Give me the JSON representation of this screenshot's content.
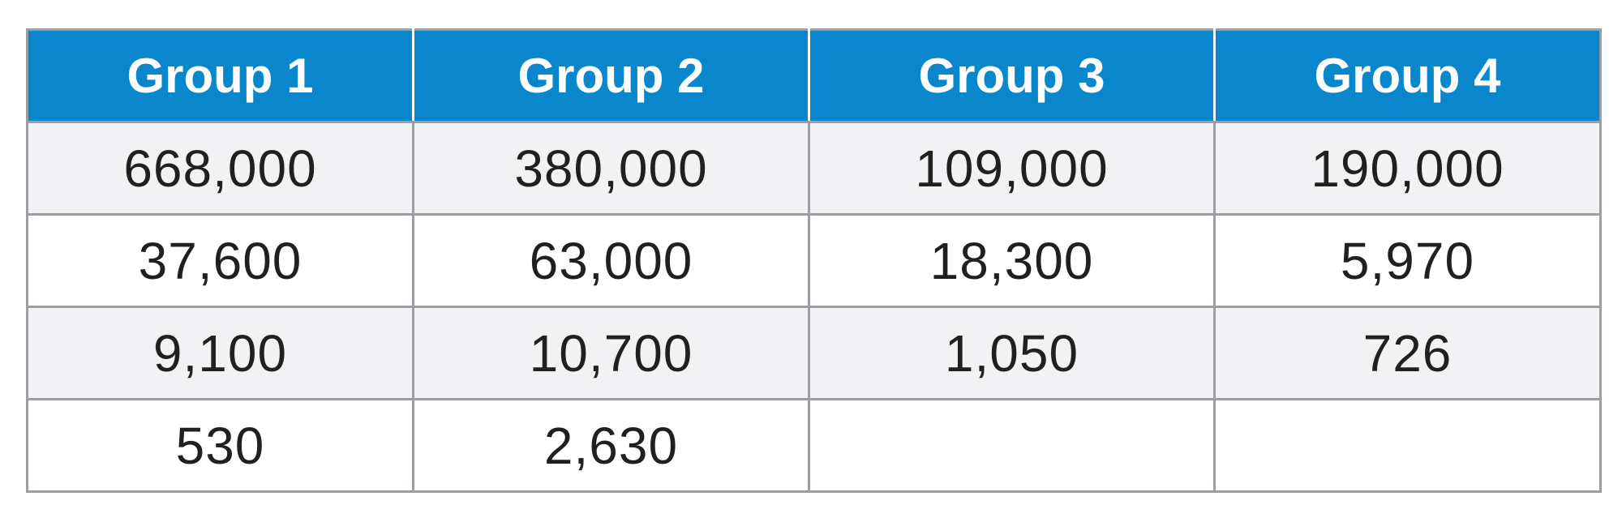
{
  "chart_data": {
    "type": "table",
    "columns": [
      "Group 1",
      "Group 2",
      "Group 3",
      "Group 4"
    ],
    "rows": [
      [
        "668,000",
        "380,000",
        "109,000",
        "190,000"
      ],
      [
        "37,600",
        "63,000",
        "18,300",
        "5,970"
      ],
      [
        "9,100",
        "10,700",
        "1,050",
        "726"
      ],
      [
        "530",
        "2,630",
        "",
        ""
      ]
    ],
    "colors": {
      "header_background": "#0a87cc",
      "header_text": "#ffffff",
      "shaded_row": "#f2f2f4",
      "border": "#9b9ea2",
      "cell_text": "#231f20"
    }
  }
}
